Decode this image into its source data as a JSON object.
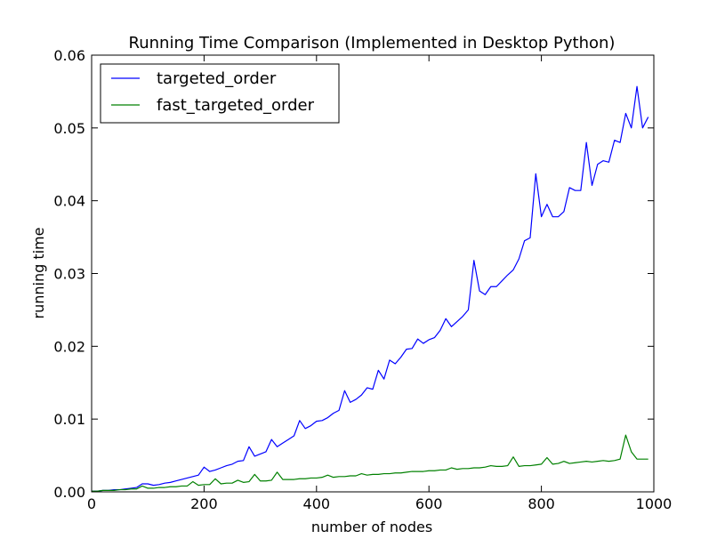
{
  "chart_data": {
    "type": "line",
    "title": "Running Time Comparison (Implemented in Desktop Python)",
    "xlabel": "number of nodes",
    "ylabel": "running time",
    "xlim": [
      0,
      1000
    ],
    "ylim": [
      0,
      0.06
    ],
    "xticks": [
      0,
      200,
      400,
      600,
      800,
      1000
    ],
    "xtick_labels": [
      "0",
      "200",
      "400",
      "600",
      "800",
      "1000"
    ],
    "yticks": [
      0,
      0.01,
      0.02,
      0.03,
      0.04,
      0.05,
      0.06
    ],
    "ytick_labels": [
      "0.00",
      "0.01",
      "0.02",
      "0.03",
      "0.04",
      "0.05",
      "0.06"
    ],
    "grid": false,
    "legend_position": "top-left",
    "x": [
      0,
      10,
      20,
      30,
      40,
      50,
      60,
      70,
      80,
      90,
      100,
      110,
      120,
      130,
      140,
      150,
      160,
      170,
      180,
      190,
      200,
      210,
      220,
      230,
      240,
      250,
      260,
      270,
      280,
      290,
      300,
      310,
      320,
      330,
      340,
      350,
      360,
      370,
      380,
      390,
      400,
      410,
      420,
      430,
      440,
      450,
      460,
      470,
      480,
      490,
      500,
      510,
      520,
      530,
      540,
      550,
      560,
      570,
      580,
      590,
      600,
      610,
      620,
      630,
      640,
      650,
      660,
      670,
      680,
      690,
      700,
      710,
      720,
      730,
      740,
      750,
      760,
      770,
      780,
      790,
      800,
      810,
      820,
      830,
      840,
      850,
      860,
      870,
      880,
      890,
      900,
      910,
      920,
      930,
      940,
      950,
      960,
      970,
      980,
      990
    ],
    "series": [
      {
        "name": "targeted_order",
        "color": "#0000ff",
        "values": [
          0.0001,
          0.0001,
          0.0002,
          0.0002,
          0.0003,
          0.0003,
          0.0004,
          0.0005,
          0.0006,
          0.0011,
          0.0011,
          0.0009,
          0.001,
          0.0012,
          0.0013,
          0.0015,
          0.0017,
          0.0019,
          0.0021,
          0.0023,
          0.0034,
          0.0028,
          0.003,
          0.0033,
          0.0036,
          0.0038,
          0.0042,
          0.0043,
          0.0062,
          0.0049,
          0.0052,
          0.0055,
          0.0072,
          0.0062,
          0.0067,
          0.0072,
          0.0077,
          0.0098,
          0.0087,
          0.0091,
          0.0097,
          0.0098,
          0.0102,
          0.0108,
          0.0112,
          0.0139,
          0.0123,
          0.0127,
          0.0133,
          0.0143,
          0.0141,
          0.0167,
          0.0155,
          0.0181,
          0.0176,
          0.0185,
          0.0196,
          0.0197,
          0.021,
          0.0204,
          0.0209,
          0.0212,
          0.0222,
          0.0238,
          0.0227,
          0.0234,
          0.0241,
          0.025,
          0.0318,
          0.0276,
          0.0271,
          0.0282,
          0.0282,
          0.029,
          0.0298,
          0.0305,
          0.032,
          0.0345,
          0.0349,
          0.0437,
          0.0378,
          0.0395,
          0.0378,
          0.0378,
          0.0385,
          0.0418,
          0.0414,
          0.0414,
          0.048,
          0.0421,
          0.045,
          0.0455,
          0.0453,
          0.0483,
          0.048,
          0.052,
          0.05,
          0.0557,
          0.05,
          0.0515
        ]
      },
      {
        "name": "fast_targeted_order",
        "color": "#008000",
        "values": [
          0.0001,
          0.0001,
          0.0002,
          0.0002,
          0.0002,
          0.0003,
          0.0003,
          0.0004,
          0.0004,
          0.0008,
          0.0005,
          0.0005,
          0.0006,
          0.0006,
          0.0007,
          0.0007,
          0.0008,
          0.0008,
          0.0014,
          0.0009,
          0.001,
          0.001,
          0.0018,
          0.0011,
          0.0012,
          0.0012,
          0.0016,
          0.0013,
          0.0014,
          0.0024,
          0.0015,
          0.0015,
          0.0016,
          0.0027,
          0.0017,
          0.0017,
          0.0017,
          0.0018,
          0.0018,
          0.0019,
          0.0019,
          0.002,
          0.0023,
          0.002,
          0.0021,
          0.0021,
          0.0022,
          0.0022,
          0.0025,
          0.0023,
          0.0024,
          0.0024,
          0.0025,
          0.0025,
          0.0026,
          0.0026,
          0.0027,
          0.0028,
          0.0028,
          0.0028,
          0.0029,
          0.0029,
          0.003,
          0.003,
          0.0033,
          0.0031,
          0.0032,
          0.0032,
          0.0033,
          0.0033,
          0.0034,
          0.0036,
          0.0035,
          0.0035,
          0.0036,
          0.0048,
          0.0035,
          0.0036,
          0.0036,
          0.0037,
          0.0038,
          0.0047,
          0.0038,
          0.0039,
          0.0042,
          0.0039,
          0.004,
          0.0041,
          0.0042,
          0.0041,
          0.0042,
          0.0043,
          0.0042,
          0.0043,
          0.0045,
          0.0078,
          0.0055,
          0.0045,
          0.0045,
          0.0045
        ]
      }
    ]
  }
}
